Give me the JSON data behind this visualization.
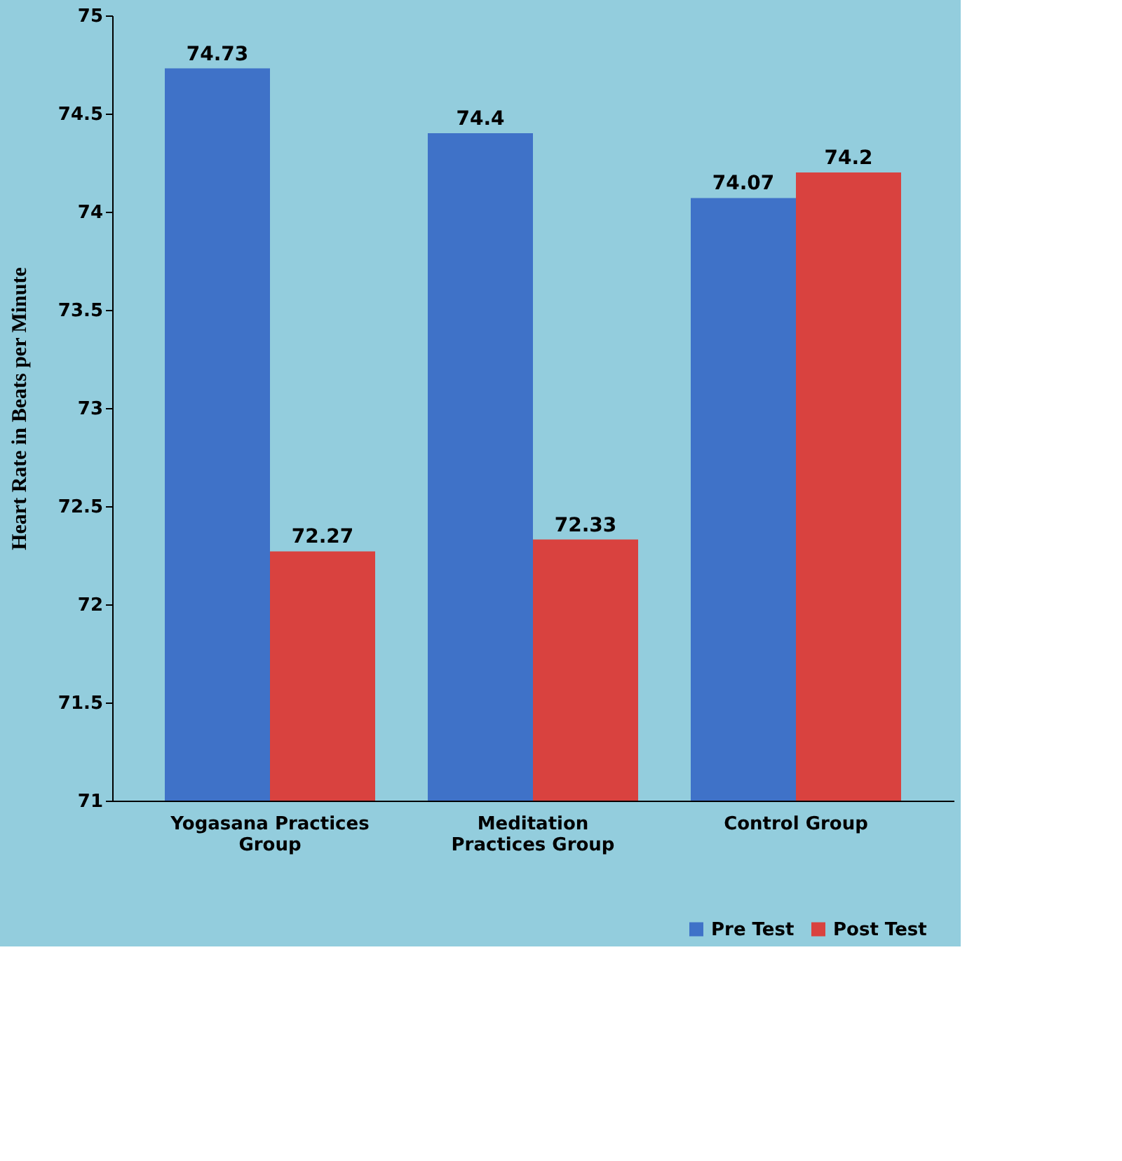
{
  "chart_data": {
    "type": "bar",
    "ylabel": "Heart Rate  in Beats per Minute",
    "categories": [
      "Yogasana Practices Group",
      "Meditation Practices Group",
      "Control Group"
    ],
    "series": [
      {
        "name": "Pre Test",
        "color": "#3f72c8",
        "values": [
          74.73,
          74.4,
          74.07
        ]
      },
      {
        "name": "Post Test",
        "color": "#d9423f",
        "values": [
          72.27,
          72.33,
          74.2
        ]
      }
    ],
    "ylim": [
      71,
      75
    ],
    "yticks": [
      71,
      71.5,
      72,
      72.5,
      73,
      73.5,
      74,
      74.5,
      75
    ],
    "grid": false,
    "legend": "bottom right",
    "data_labels": true
  }
}
